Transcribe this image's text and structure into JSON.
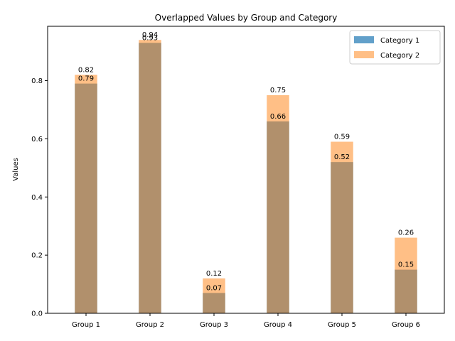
{
  "chart_data": {
    "type": "bar",
    "title": "Overlapped Values by Group and Category",
    "xlabel": "",
    "ylabel": "Values",
    "categories": [
      "Group 1",
      "Group 2",
      "Group 3",
      "Group 4",
      "Group 5",
      "Group 6"
    ],
    "series": [
      {
        "name": "Category 1",
        "values": [
          0.79,
          0.93,
          0.07,
          0.66,
          0.52,
          0.15
        ],
        "labels": [
          "0.79",
          "0.93",
          "0.07",
          "0.66",
          "0.52",
          "0.15"
        ],
        "color": "#1f77b4",
        "alpha": 0.7
      },
      {
        "name": "Category 2",
        "values": [
          0.82,
          0.94,
          0.12,
          0.75,
          0.59,
          0.26
        ],
        "labels": [
          "0.82",
          "0.94",
          "0.12",
          "0.75",
          "0.59",
          "0.26"
        ],
        "color": "#ff7f0e",
        "alpha": 0.5
      }
    ],
    "ylim": [
      0,
      0.987
    ],
    "yticks": [
      0.0,
      0.2,
      0.4,
      0.6,
      0.8
    ],
    "ytick_labels": [
      "0.0",
      "0.2",
      "0.4",
      "0.6",
      "0.8"
    ],
    "grid": false,
    "legend_position": "top-right"
  }
}
